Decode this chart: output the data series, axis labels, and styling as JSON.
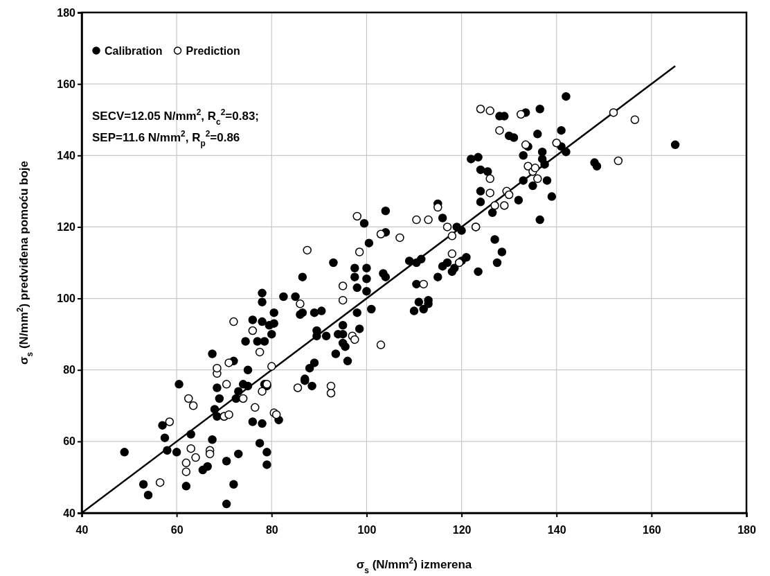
{
  "chart_data": {
    "type": "scatter",
    "xlabel": "σ$_{s}$ (N/mm$^{2}$) izmerena",
    "ylabel": "σ$_{s}$ (N/mm$^{2}$) predviđena pomoću boje",
    "xlim": [
      40,
      180
    ],
    "ylim": [
      40,
      180
    ],
    "xticks": [
      40,
      60,
      80,
      100,
      120,
      140,
      160,
      180
    ],
    "yticks": [
      40,
      60,
      80,
      100,
      120,
      140,
      160,
      180
    ],
    "grid": true,
    "legend": "top left",
    "annotations": [
      "SECV=12.05 N/mm$^{2}$, R$_{c}$$^{2}$=0.83;",
      "SEP=11.6 N/mm$^{2}$, R$_{p}$$^{2}$=0.86"
    ],
    "series": [
      {
        "name": "Calibration",
        "color": "#000000",
        "marker": "circle",
        "x": [
          49,
          53,
          54,
          57,
          57.5,
          58,
          60,
          60.5,
          62,
          63,
          65.5,
          66.5,
          67.5,
          67.5,
          68,
          68.5,
          68.5,
          69,
          70,
          70.5,
          70.5,
          72,
          72,
          72.5,
          73,
          73,
          74,
          74.5,
          75,
          75,
          76,
          76,
          77,
          78,
          77.5,
          78,
          78,
          78,
          78.5,
          78.5,
          79,
          79,
          79,
          79.5,
          80,
          80.5,
          80.5,
          81.5,
          82.5,
          85,
          86,
          86.5,
          86.5,
          87,
          87,
          88,
          88.5,
          89,
          89,
          89.5,
          89.5,
          90.5,
          91.5,
          93,
          93.5,
          94,
          95,
          95,
          95,
          95.5,
          96,
          97.5,
          97.5,
          98,
          98,
          98.5,
          99.5,
          100,
          100,
          100,
          100.5,
          101,
          103.5,
          104,
          104,
          104,
          109,
          110,
          110.5,
          110.5,
          111,
          111.5,
          112,
          113,
          113,
          115,
          115,
          116,
          116,
          117,
          118,
          118.5,
          119,
          120,
          120,
          121,
          122,
          123,
          123.5,
          123.5,
          124,
          124,
          124,
          125.5,
          126.5,
          127,
          127.5,
          128,
          128.5,
          129,
          130,
          131,
          132,
          133,
          133,
          133.5,
          134,
          135,
          136,
          136.5,
          136.5,
          137,
          137,
          137.5,
          138,
          139,
          141,
          141,
          142,
          142,
          148,
          148.5,
          165
        ],
        "values": [
          57,
          48,
          45,
          64.5,
          61,
          57.5,
          57,
          76,
          47.5,
          62,
          52,
          53,
          60.5,
          84.5,
          69,
          67,
          75,
          72,
          67,
          42.5,
          54.5,
          48,
          82.5,
          72,
          56.5,
          74,
          76,
          88,
          80,
          75.5,
          94,
          65.5,
          88,
          93.5,
          59.5,
          65,
          99,
          101.5,
          88,
          76,
          75.5,
          57,
          53.5,
          92.5,
          90,
          96,
          93,
          66,
          100.5,
          100.5,
          95.5,
          106,
          96,
          77,
          77.5,
          80.5,
          75.5,
          96,
          82,
          91,
          89.5,
          96.5,
          89.5,
          110,
          84.5,
          90,
          90,
          92.5,
          87.5,
          86.5,
          82.5,
          106,
          108.5,
          103,
          96,
          91.5,
          121,
          108.5,
          105.5,
          102,
          115.5,
          97,
          107,
          118.5,
          124.5,
          106,
          110.5,
          96.5,
          104,
          110,
          99,
          111,
          97,
          99.5,
          98.5,
          126.5,
          106,
          109,
          122.5,
          110,
          107.5,
          108.5,
          120,
          119,
          110.5,
          111.5,
          139,
          120,
          139.5,
          107.5,
          136,
          130,
          127,
          135.5,
          124,
          116.5,
          110,
          151,
          113,
          151,
          145.5,
          145,
          127.5,
          133,
          140,
          152,
          142.5,
          131.5,
          146,
          153,
          122,
          141,
          139,
          137.5,
          133,
          128.5,
          147,
          142.5,
          141,
          156.5,
          138,
          137,
          143
        ]
      },
      {
        "name": "Prediction",
        "color": "#ffffff",
        "marker": "circle",
        "x": [
          56.5,
          58.5,
          62,
          62,
          62.5,
          63,
          63.5,
          64,
          67,
          67,
          68.5,
          68.5,
          70,
          70.5,
          71,
          71,
          72,
          74,
          76,
          76.5,
          77.5,
          78,
          79,
          80,
          80.5,
          81,
          85.5,
          86,
          87.5,
          92.5,
          92.5,
          95,
          95,
          97,
          97.5,
          98,
          98.5,
          103,
          103,
          107,
          110.5,
          112,
          113,
          115,
          117,
          118,
          118,
          119.5,
          123,
          124,
          126,
          126,
          126,
          127,
          128,
          129,
          129.5,
          130,
          132.5,
          133.5,
          134,
          135,
          135.5,
          136,
          140,
          152,
          153,
          156.5
        ],
        "values": [
          48.5,
          65.5,
          54,
          51.5,
          72,
          58,
          70,
          55.5,
          57.5,
          56.5,
          79,
          80.5,
          67,
          76,
          82,
          67.5,
          93.5,
          72,
          91,
          69.5,
          85,
          74,
          76,
          81,
          68,
          67.5,
          75,
          98.5,
          113.5,
          75.5,
          73.5,
          99.5,
          103.5,
          89.5,
          88.5,
          123,
          113,
          87,
          118,
          117,
          122,
          104,
          122,
          125.5,
          120,
          117.5,
          112.5,
          110,
          120,
          153,
          152.5,
          133.5,
          129.5,
          126,
          147,
          126,
          130,
          129,
          151.5,
          143,
          137,
          135.5,
          136.5,
          133.5,
          143.5,
          152,
          138.5,
          150
        ]
      },
      {
        "type": "line",
        "color": "#000000",
        "x": [
          40,
          165
        ],
        "values": [
          40,
          165
        ],
        "marker": "none"
      }
    ]
  }
}
